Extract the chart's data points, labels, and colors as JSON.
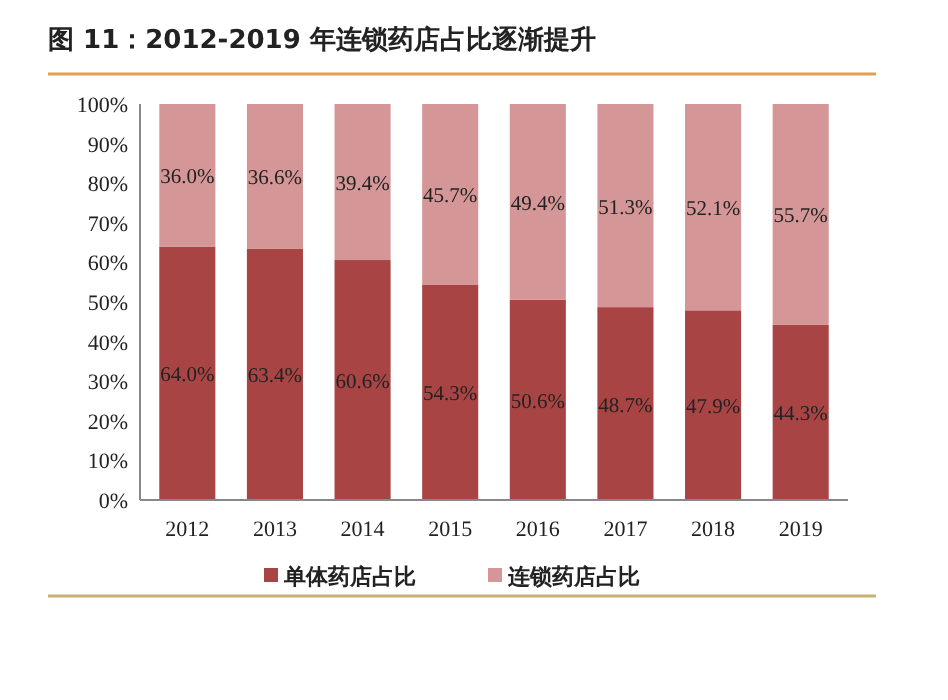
{
  "chart_data": {
    "type": "bar",
    "stacked": true,
    "title": "图 11：2012-2019 年连锁药店占比逐渐提升",
    "categories": [
      "2012",
      "2013",
      "2014",
      "2015",
      "2016",
      "2017",
      "2018",
      "2019"
    ],
    "series": [
      {
        "name": "单体药店占比",
        "color": "#a94444",
        "values": [
          64.0,
          63.4,
          60.6,
          54.3,
          50.6,
          48.7,
          47.9,
          44.3
        ],
        "value_labels": [
          "64.0%",
          "63.4%",
          "60.6%",
          "54.3%",
          "50.6%",
          "48.7%",
          "47.9%",
          "44.3%"
        ]
      },
      {
        "name": "连锁药店占比",
        "color": "#d49696",
        "values": [
          36.0,
          36.6,
          39.4,
          45.7,
          49.4,
          51.3,
          52.1,
          55.7
        ],
        "value_labels": [
          "36.0%",
          "36.6%",
          "39.4%",
          "45.7%",
          "49.4%",
          "51.3%",
          "52.1%",
          "55.7%"
        ]
      }
    ],
    "ylim": [
      0,
      100
    ],
    "yticks": [
      {
        "value": 0,
        "label": "0%"
      },
      {
        "value": 10,
        "label": "10%"
      },
      {
        "value": 20,
        "label": "20%"
      },
      {
        "value": 30,
        "label": "30%"
      },
      {
        "value": 40,
        "label": "40%"
      },
      {
        "value": 50,
        "label": "50%"
      },
      {
        "value": 60,
        "label": "60%"
      },
      {
        "value": 70,
        "label": "70%"
      },
      {
        "value": 80,
        "label": "80%"
      },
      {
        "value": 90,
        "label": "90%"
      },
      {
        "value": 100,
        "label": "100%"
      }
    ],
    "legend": "bottom",
    "grid": false
  }
}
